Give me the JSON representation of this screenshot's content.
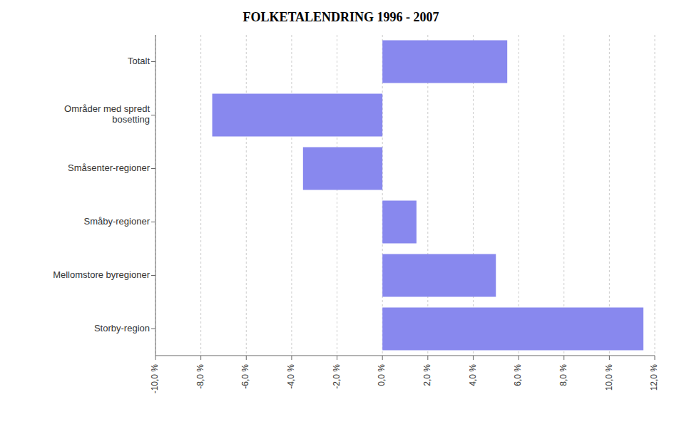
{
  "chart_data": {
    "type": "bar",
    "orientation": "horizontal",
    "title": "FOLKETALENDRING 1996 - 2007",
    "categories": [
      "Totalt",
      "Områder med spredt\nbosetting",
      "Småsenter-regioner",
      "Småby-regioner",
      "Mellomstore byregioner",
      "Storby-region"
    ],
    "values": [
      5.5,
      -7.5,
      -3.5,
      1.5,
      5.0,
      11.5
    ],
    "color": "#8888ee",
    "xlim": [
      -10.0,
      12.0
    ],
    "xticks": [
      {
        "value": -10.0,
        "label": "-10,0 %"
      },
      {
        "value": -8.0,
        "label": "-8,0 %"
      },
      {
        "value": -6.0,
        "label": "-6,0 %"
      },
      {
        "value": -4.0,
        "label": "-4,0 %"
      },
      {
        "value": -2.0,
        "label": "-2,0 %"
      },
      {
        "value": 0.0,
        "label": "0,0 %"
      },
      {
        "value": 2.0,
        "label": "2,0 %"
      },
      {
        "value": 4.0,
        "label": "4,0 %"
      },
      {
        "value": 6.0,
        "label": "6,0 %"
      },
      {
        "value": 8.0,
        "label": "8,0 %"
      },
      {
        "value": 10.0,
        "label": "10,0 %"
      },
      {
        "value": 12.0,
        "label": "12,0 %"
      }
    ],
    "grid": true
  }
}
